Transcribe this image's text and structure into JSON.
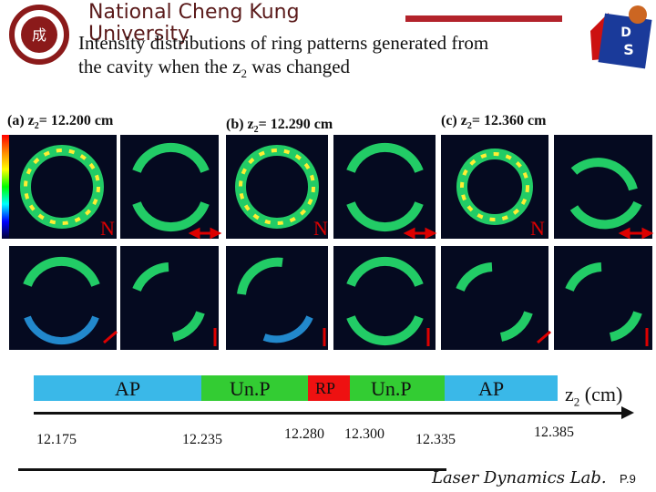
{
  "header": {
    "university_line1": "National Cheng Kung",
    "university_line2": "University",
    "title_line1": "Intensity distributions of ring patterns generated from",
    "title_line2_prefix": "the cavity when the z",
    "title_line2_sub": "2",
    "title_line2_suffix": " was changed"
  },
  "panels": [
    {
      "label_prefix": "(a) z",
      "label_sub": "2",
      "label_value": "= 12.200 cm",
      "n_label": "N"
    },
    {
      "label_prefix": "(b) z",
      "label_sub": "2",
      "label_value": "= 12.290 cm",
      "n_label": "N"
    },
    {
      "label_prefix": "(c) z",
      "label_sub": "2",
      "label_value": "= 12.360 cm",
      "n_label": "N"
    }
  ],
  "axis": {
    "bands": [
      {
        "label": "AP",
        "color": "#3ab8e8"
      },
      {
        "label": "Un.P",
        "color": "#33cc33"
      },
      {
        "label": "RP",
        "color": "#ee1111"
      },
      {
        "label": "Un.P",
        "color": "#33cc33"
      },
      {
        "label": "AP",
        "color": "#3ab8e8"
      }
    ],
    "axis_label_prefix": "z",
    "axis_label_sub": "2",
    "axis_label_suffix": " (cm)",
    "ticks": [
      "12.175",
      "12.235",
      "12.280",
      "12.300",
      "12.335",
      "12.385"
    ]
  },
  "footer": {
    "lab": "Laser Dynamics Lab.",
    "page": "P.9"
  }
}
